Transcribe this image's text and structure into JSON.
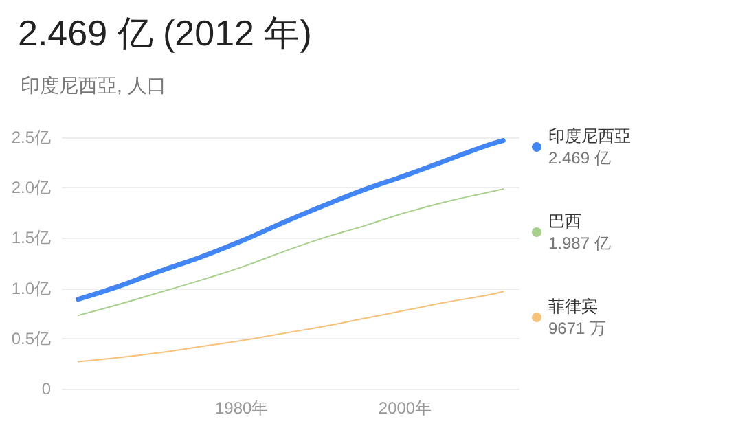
{
  "chart_data": {
    "type": "line",
    "title": "2.469 亿 (2012 年)",
    "subtitle": "印度尼西亞, 人口",
    "x": [
      1960,
      1965,
      1970,
      1975,
      1980,
      1985,
      1990,
      1995,
      2000,
      2005,
      2010,
      2012
    ],
    "series": [
      {
        "name": "印度尼西亞",
        "color": "#4285f4",
        "values": [
          0.89,
          1.02,
          1.17,
          1.31,
          1.47,
          1.65,
          1.82,
          1.98,
          2.12,
          2.27,
          2.42,
          2.469
        ]
      },
      {
        "name": "巴西",
        "color": "#a8d08d",
        "values": [
          0.73,
          0.84,
          0.96,
          1.08,
          1.21,
          1.36,
          1.5,
          1.62,
          1.75,
          1.86,
          1.95,
          1.987
        ]
      },
      {
        "name": "菲律宾",
        "color": "#f6c27a",
        "values": [
          0.27,
          0.31,
          0.36,
          0.42,
          0.48,
          0.55,
          0.62,
          0.7,
          0.78,
          0.86,
          0.93,
          0.9671
        ]
      }
    ],
    "annotations": [
      "2.469 亿",
      "1.987 亿",
      "9671 万"
    ],
    "xlim": [
      1958,
      2014
    ],
    "xticks": [
      {
        "value": 1980,
        "label": "1980年"
      },
      {
        "value": 2000,
        "label": "2000年"
      }
    ],
    "ylim": [
      0,
      2.5
    ],
    "yticks": [
      {
        "value": 0,
        "label": "0"
      },
      {
        "value": 0.5,
        "label": "0.5亿"
      },
      {
        "value": 1,
        "label": "1.0亿"
      },
      {
        "value": 1.5,
        "label": "1.5亿"
      },
      {
        "value": 2,
        "label": "2.0亿"
      },
      {
        "value": 2.5,
        "label": "2.5亿"
      }
    ],
    "grid": "y",
    "legend": "right",
    "marker": "none",
    "line_style": "solid"
  }
}
